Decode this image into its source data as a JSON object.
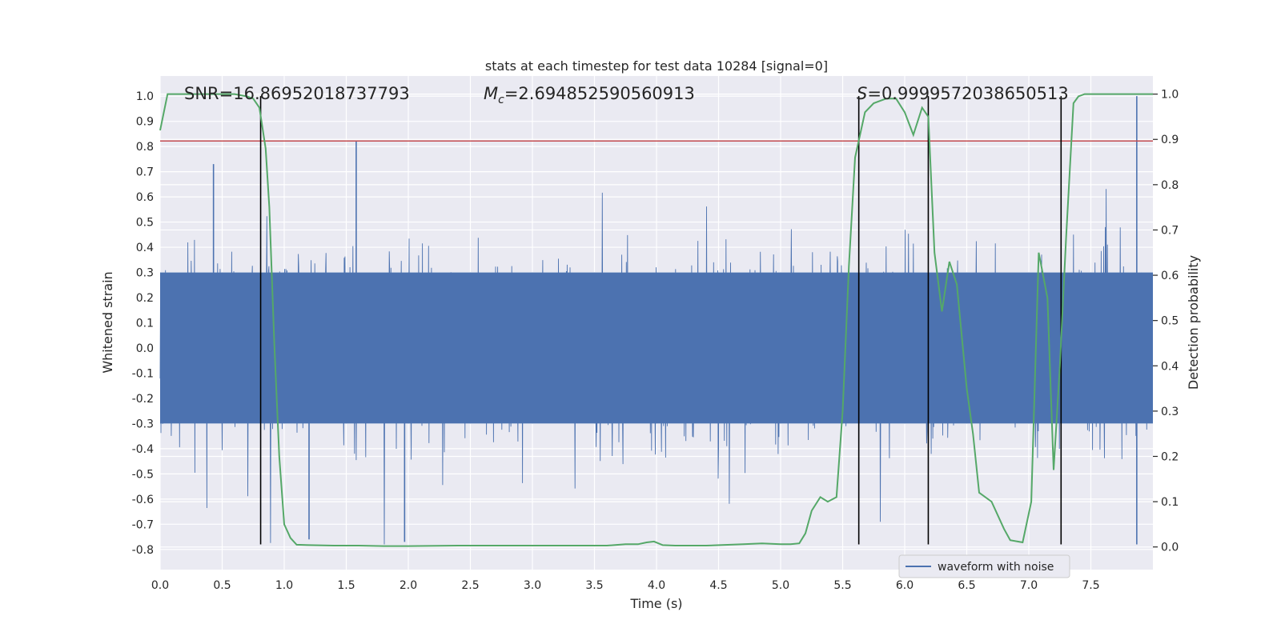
{
  "chart_data": {
    "type": "line",
    "title": "stats at each timestep for test data 10284 [signal=0]",
    "xlabel": "Time (s)",
    "ylabel_left": "Whitened strain",
    "ylabel_right": "Detection probability",
    "xlim": [
      0.0,
      8.0
    ],
    "ylim_left": [
      -0.88,
      1.08
    ],
    "ylim_right": [
      -0.05,
      1.04
    ],
    "x_ticks": [
      "0.0",
      "0.5",
      "1.0",
      "1.5",
      "2.0",
      "2.5",
      "3.0",
      "3.5",
      "4.0",
      "4.5",
      "5.0",
      "5.5",
      "6.0",
      "6.5",
      "7.0",
      "7.5"
    ],
    "x_tick_values": [
      0.0,
      0.5,
      1.0,
      1.5,
      2.0,
      2.5,
      3.0,
      3.5,
      4.0,
      4.5,
      5.0,
      5.5,
      6.0,
      6.5,
      7.0,
      7.5
    ],
    "y_left_ticks": [
      "1.0",
      "0.9",
      "0.8",
      "0.7",
      "0.6",
      "0.5",
      "0.4",
      "0.3",
      "0.2",
      "0.1",
      "0.0",
      "-0.1",
      "-0.2",
      "-0.3",
      "-0.4",
      "-0.5",
      "-0.6",
      "-0.7",
      "-0.8"
    ],
    "y_left_tick_values": [
      1.0,
      0.9,
      0.8,
      0.7,
      0.6,
      0.5,
      0.4,
      0.3,
      0.2,
      0.1,
      0.0,
      -0.1,
      -0.2,
      -0.3,
      -0.4,
      -0.5,
      -0.6,
      -0.7,
      -0.8
    ],
    "y_right_ticks": [
      "1.0",
      "0.9",
      "0.8",
      "0.7",
      "0.6",
      "0.5",
      "0.4",
      "0.3",
      "0.2",
      "0.1",
      "0.0"
    ],
    "y_right_tick_values": [
      1.0,
      0.9,
      0.8,
      0.7,
      0.6,
      0.5,
      0.4,
      0.3,
      0.2,
      0.1,
      0.0
    ],
    "annotations": {
      "snr": "SNR=16.86952018737793",
      "mc_symbol": "M",
      "mc_subscript": "c",
      "mc_value": "=2.694852590560913",
      "s_symbol": "S",
      "s_value": "=0.9999572038650513"
    },
    "threshold_line": {
      "axis": "left",
      "y": 0.822,
      "color": "#c44e52"
    },
    "vertical_lines": {
      "x": [
        0.81,
        5.63,
        6.19,
        7.26
      ],
      "ymin": -0.78,
      "ymax": 1.0,
      "color": "#000000"
    },
    "series": [
      {
        "name": "waveform with noise",
        "axis": "left",
        "color": "#4c72b0",
        "style": "dense-noise",
        "duration": 8.0,
        "typical_amplitude": 0.3,
        "max_value": 1.0,
        "min_value": -0.78
      },
      {
        "axis": "right",
        "color": "#55a868",
        "x": [
          0.0,
          0.06,
          0.12,
          0.2,
          0.3,
          0.4,
          0.5,
          0.6,
          0.7,
          0.75,
          0.8,
          0.85,
          0.88,
          0.92,
          0.96,
          1.0,
          1.05,
          1.1,
          1.2,
          1.4,
          1.6,
          1.8,
          2.0,
          2.4,
          2.8,
          3.2,
          3.6,
          3.75,
          3.85,
          3.92,
          3.98,
          4.05,
          4.15,
          4.4,
          4.7,
          4.85,
          5.0,
          5.08,
          5.15,
          5.2,
          5.25,
          5.32,
          5.38,
          5.45,
          5.5,
          5.55,
          5.6,
          5.68,
          5.75,
          5.85,
          5.93,
          6.0,
          6.07,
          6.14,
          6.19,
          6.24,
          6.3,
          6.36,
          6.42,
          6.5,
          6.55,
          6.6,
          6.7,
          6.8,
          6.85,
          6.95,
          7.02,
          7.08,
          7.15,
          7.2,
          7.25,
          7.3,
          7.36,
          7.4,
          7.45,
          7.55,
          7.7,
          7.85,
          8.0
        ],
        "values": [
          0.92,
          1.0,
          1.0,
          1.0,
          1.0,
          1.0,
          1.0,
          1.0,
          0.995,
          0.99,
          0.97,
          0.88,
          0.75,
          0.45,
          0.2,
          0.05,
          0.02,
          0.005,
          0.004,
          0.003,
          0.003,
          0.002,
          0.002,
          0.003,
          0.003,
          0.003,
          0.003,
          0.006,
          0.006,
          0.01,
          0.012,
          0.004,
          0.003,
          0.003,
          0.006,
          0.008,
          0.006,
          0.006,
          0.008,
          0.03,
          0.08,
          0.11,
          0.1,
          0.11,
          0.3,
          0.62,
          0.86,
          0.96,
          0.98,
          0.99,
          0.99,
          0.96,
          0.91,
          0.97,
          0.95,
          0.65,
          0.52,
          0.63,
          0.58,
          0.35,
          0.25,
          0.12,
          0.1,
          0.04,
          0.015,
          0.01,
          0.1,
          0.65,
          0.55,
          0.17,
          0.4,
          0.68,
          0.98,
          0.995,
          1.0,
          1.0,
          1.0,
          1.0,
          1.0
        ]
      }
    ],
    "legend_position": "lower-center-right",
    "grid": true
  }
}
